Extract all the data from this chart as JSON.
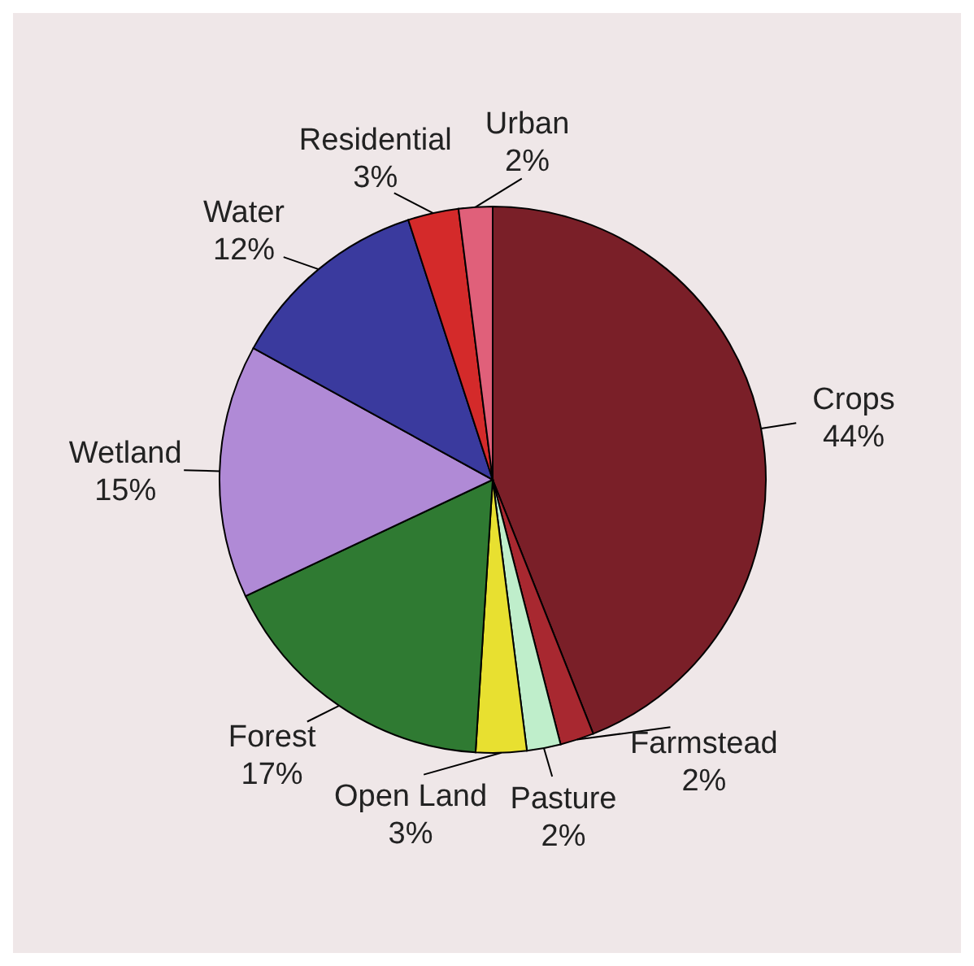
{
  "chart_data": {
    "type": "pie",
    "categories": [
      "Crops",
      "Farmstead",
      "Pasture",
      "Open Land",
      "Forest",
      "Wetland",
      "Water",
      "Residential",
      "Urban"
    ],
    "values": [
      44,
      2,
      2,
      3,
      17,
      15,
      12,
      3,
      2
    ],
    "value_labels": [
      "44%",
      "2%",
      "2%",
      "3%",
      "17%",
      "15%",
      "12%",
      "3%",
      "2%"
    ],
    "colors": [
      "#7a1f28",
      "#a82830",
      "#bfeecb",
      "#e8e030",
      "#2f7a32",
      "#b08ad6",
      "#3a3a9e",
      "#d42a2a",
      "#e0607a"
    ],
    "legend": false
  }
}
